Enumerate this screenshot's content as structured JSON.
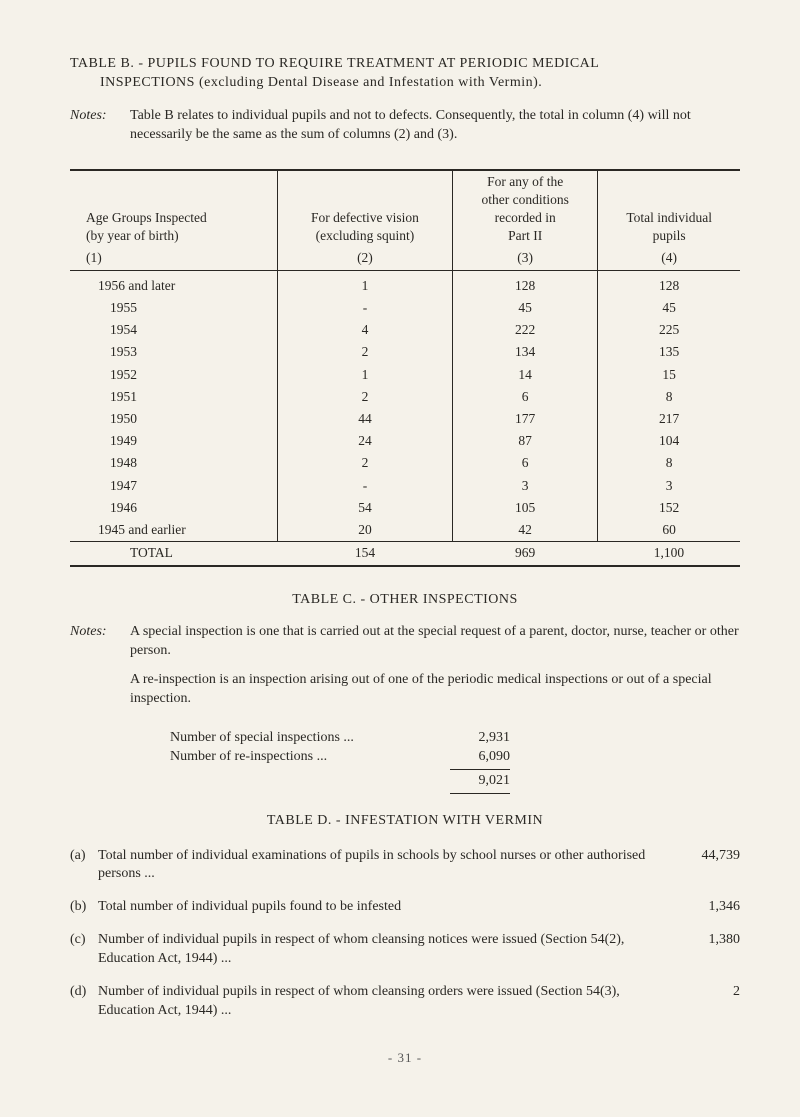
{
  "tableB": {
    "titleLine1": "TABLE B. - PUPILS FOUND TO REQUIRE TREATMENT AT PERIODIC MEDICAL",
    "titleLine2": "INSPECTIONS   (excluding Dental Disease and Infestation with Vermin).",
    "notesLabel": "Notes:",
    "notesBody": "Table B relates to individual pupils and not to defects. Consequently, the total in column (4) will not necessarily be the same as the sum of columns (2) and (3).",
    "headers": {
      "h1a": "Age Groups Inspected",
      "h1b": "(by year of birth)",
      "h1n": "(1)",
      "h2a": "For defective vision",
      "h2b": "(excluding squint)",
      "h2n": "(2)",
      "h3a": "For any of the",
      "h3b": "other conditions",
      "h3c": "recorded in",
      "h3d": "Part II",
      "h3n": "(3)",
      "h4a": "Total individual",
      "h4b": "pupils",
      "h4n": "(4)"
    },
    "rows": [
      {
        "c1": "1956 and later",
        "c2": "1",
        "c3": "128",
        "c4": "128"
      },
      {
        "c1": "1955",
        "c2": "-",
        "c3": "45",
        "c4": "45"
      },
      {
        "c1": "1954",
        "c2": "4",
        "c3": "222",
        "c4": "225"
      },
      {
        "c1": "1953",
        "c2": "2",
        "c3": "134",
        "c4": "135"
      },
      {
        "c1": "1952",
        "c2": "1",
        "c3": "14",
        "c4": "15"
      },
      {
        "c1": "1951",
        "c2": "2",
        "c3": "6",
        "c4": "8"
      },
      {
        "c1": "1950",
        "c2": "44",
        "c3": "177",
        "c4": "217"
      },
      {
        "c1": "1949",
        "c2": "24",
        "c3": "87",
        "c4": "104"
      },
      {
        "c1": "1948",
        "c2": "2",
        "c3": "6",
        "c4": "8"
      },
      {
        "c1": "1947",
        "c2": "-",
        "c3": "3",
        "c4": "3"
      },
      {
        "c1": "1946",
        "c2": "54",
        "c3": "105",
        "c4": "152"
      },
      {
        "c1": "1945 and earlier",
        "c2": "20",
        "c3": "42",
        "c4": "60"
      }
    ],
    "total": {
      "label": "TOTAL",
      "c2": "154",
      "c3": "969",
      "c4": "1,100"
    }
  },
  "tableC": {
    "title": "TABLE C. - OTHER INSPECTIONS",
    "notesLabel": "Notes:",
    "p1": "A special inspection is one that is carried out at the special request of a parent, doctor, nurse, teacher or other person.",
    "p2": "A re-inspection is an inspection arising out of one of the periodic medical inspections or out of a special inspection.",
    "stat1Label": "Number of special inspections   ...",
    "stat1Val": "2,931",
    "stat2Label": "Number of re-inspections             ...",
    "stat2Val": "6,090",
    "statTotal": "9,021"
  },
  "tableD": {
    "title": "TABLE D. - INFESTATION WITH VERMIN",
    "items": [
      {
        "label": "(a)",
        "text": "Total number of individual examinations of pupils in schools by school nurses or other authorised persons               ...",
        "val": "44,739"
      },
      {
        "label": "(b)",
        "text": "Total number of individual pupils found to be infested",
        "val": "1,346"
      },
      {
        "label": "(c)",
        "text": "Number of individual pupils in respect of whom cleansing notices were issued (Section 54(2), Education Act, 1944)        ...",
        "val": "1,380"
      },
      {
        "label": "(d)",
        "text": "Number of individual pupils in respect of whom cleansing orders were issued (Section 54(3), Education Act, 1944)        ...",
        "val": "2"
      }
    ]
  },
  "pageNumber": "- 31 -",
  "colors": {
    "background": "#f5f2ea",
    "text": "#2a2824",
    "rule": "#2a2824"
  }
}
